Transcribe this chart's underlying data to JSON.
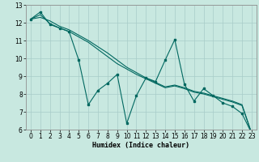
{
  "title": "",
  "xlabel": "Humidex (Indice chaleur)",
  "background_color": "#c8e8e0",
  "grid_color": "#a8ccc8",
  "line_color": "#006860",
  "xlim": [
    -0.5,
    23.5
  ],
  "ylim": [
    6,
    13
  ],
  "yticks": [
    6,
    7,
    8,
    9,
    10,
    11,
    12,
    13
  ],
  "xticks": [
    0,
    1,
    2,
    3,
    4,
    5,
    6,
    7,
    8,
    9,
    10,
    11,
    12,
    13,
    14,
    15,
    16,
    17,
    18,
    19,
    20,
    21,
    22,
    23
  ],
  "series1": [
    12.2,
    12.6,
    11.9,
    11.7,
    11.5,
    9.9,
    7.4,
    8.2,
    8.6,
    9.1,
    6.35,
    7.9,
    8.9,
    8.7,
    9.9,
    11.05,
    8.55,
    7.6,
    8.3,
    7.9,
    7.5,
    7.3,
    6.9,
    5.8
  ],
  "series2": [
    12.2,
    12.45,
    11.95,
    11.7,
    11.5,
    11.2,
    10.9,
    10.5,
    10.1,
    9.7,
    9.4,
    9.1,
    8.85,
    8.6,
    8.35,
    8.45,
    8.3,
    8.1,
    8.0,
    7.85,
    7.7,
    7.55,
    7.35,
    5.8
  ],
  "series3": [
    12.2,
    12.3,
    12.1,
    11.8,
    11.6,
    11.3,
    11.0,
    10.65,
    10.3,
    9.9,
    9.5,
    9.2,
    8.9,
    8.65,
    8.4,
    8.5,
    8.35,
    8.15,
    8.05,
    7.9,
    7.75,
    7.6,
    7.4,
    5.8
  ],
  "tick_fontsize": 5.5,
  "xlabel_fontsize": 6.0
}
